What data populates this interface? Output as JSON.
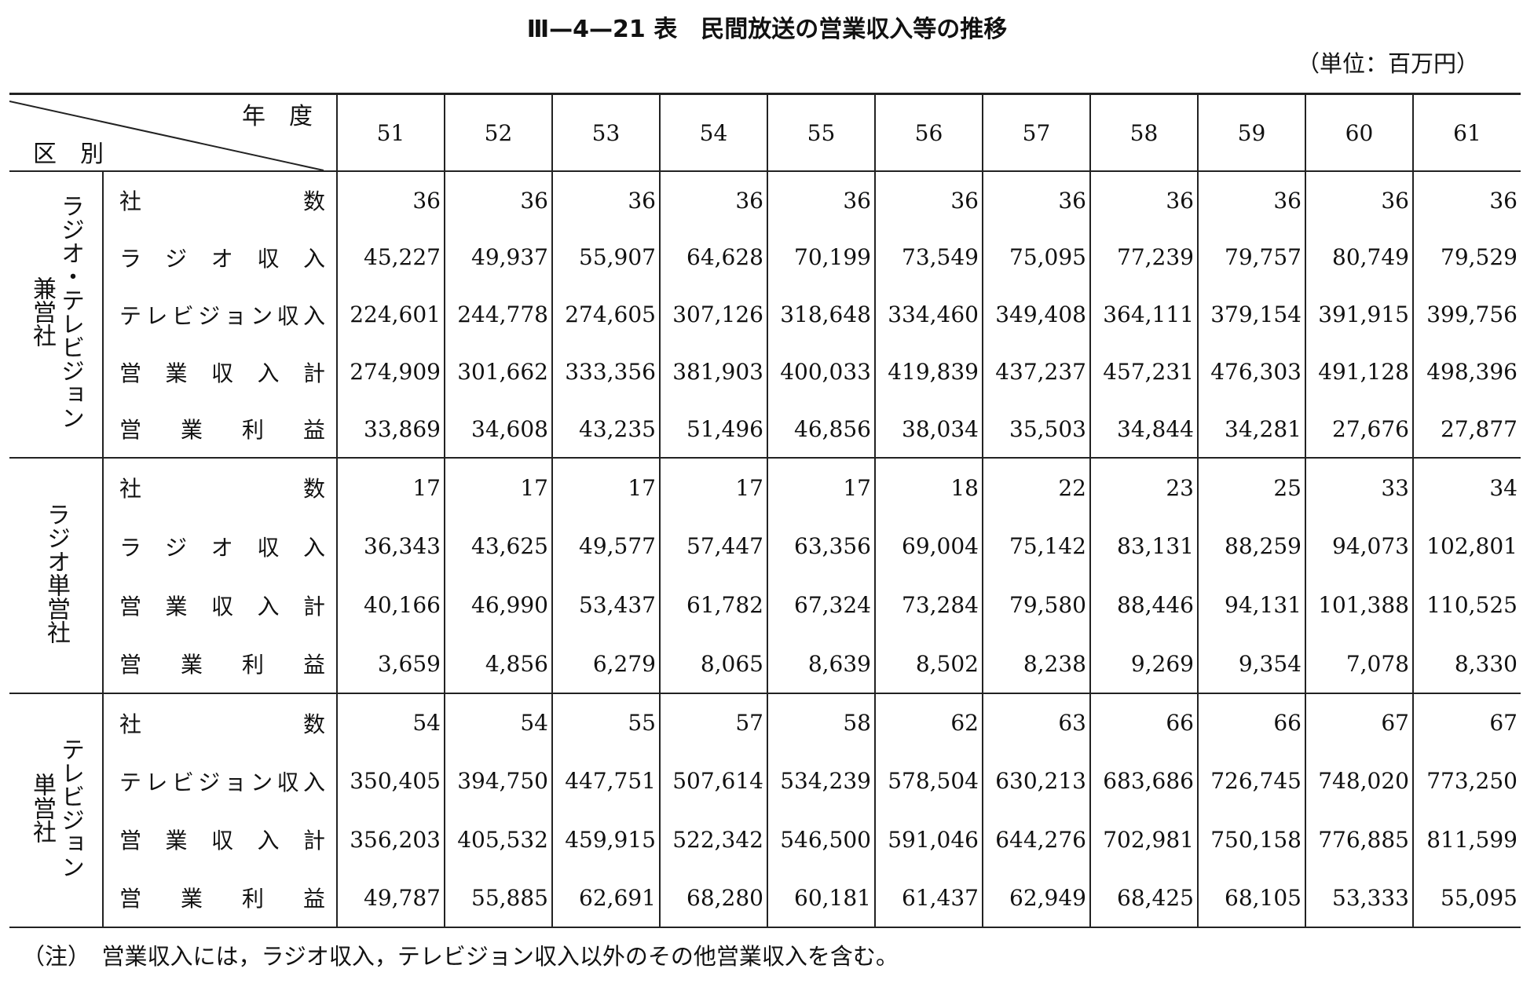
{
  "title": "Ⅲ—4—21 表　民間放送の営業収入等の推移",
  "unit": "（単位：百万円）",
  "header": {
    "year_label": "年　度",
    "category_label": "区　別",
    "years": [
      51,
      52,
      53,
      54,
      55,
      56,
      57,
      58,
      59,
      60,
      61
    ]
  },
  "groups": [
    {
      "label": [
        "ラジオ・テレビジョン",
        "兼営社"
      ],
      "rows": [
        {
          "label": "社数",
          "values": [
            "36",
            "36",
            "36",
            "36",
            "36",
            "36",
            "36",
            "36",
            "36",
            "36",
            "36"
          ]
        },
        {
          "label": "ラジオ収入",
          "values": [
            "45,227",
            "49,937",
            "55,907",
            "64,628",
            "70,199",
            "73,549",
            "75,095",
            "77,239",
            "79,757",
            "80,749",
            "79,529"
          ]
        },
        {
          "label": "テレビジョン収入",
          "values": [
            "224,601",
            "244,778",
            "274,605",
            "307,126",
            "318,648",
            "334,460",
            "349,408",
            "364,111",
            "379,154",
            "391,915",
            "399,756"
          ]
        },
        {
          "label": "営業収入計",
          "values": [
            "274,909",
            "301,662",
            "333,356",
            "381,903",
            "400,033",
            "419,839",
            "437,237",
            "457,231",
            "476,303",
            "491,128",
            "498,396"
          ]
        },
        {
          "label": "営業利益",
          "values": [
            "33,869",
            "34,608",
            "43,235",
            "51,496",
            "46,856",
            "38,034",
            "35,503",
            "34,844",
            "34,281",
            "27,676",
            "27,877"
          ]
        }
      ]
    },
    {
      "label": [
        "ラジオ単営社"
      ],
      "rows": [
        {
          "label": "社数",
          "values": [
            "17",
            "17",
            "17",
            "17",
            "17",
            "18",
            "22",
            "23",
            "25",
            "33",
            "34"
          ]
        },
        {
          "label": "ラジオ収入",
          "values": [
            "36,343",
            "43,625",
            "49,577",
            "57,447",
            "63,356",
            "69,004",
            "75,142",
            "83,131",
            "88,259",
            "94,073",
            "102,801"
          ]
        },
        {
          "label": "営業収入計",
          "values": [
            "40,166",
            "46,990",
            "53,437",
            "61,782",
            "67,324",
            "73,284",
            "79,580",
            "88,446",
            "94,131",
            "101,388",
            "110,525"
          ]
        },
        {
          "label": "営業利益",
          "values": [
            "3,659",
            "4,856",
            "6,279",
            "8,065",
            "8,639",
            "8,502",
            "8,238",
            "9,269",
            "9,354",
            "7,078",
            "8,330"
          ]
        }
      ]
    },
    {
      "label": [
        "テレビジョン",
        "単営社"
      ],
      "rows": [
        {
          "label": "社数",
          "values": [
            "54",
            "54",
            "55",
            "57",
            "58",
            "62",
            "63",
            "66",
            "66",
            "67",
            "67"
          ]
        },
        {
          "label": "テレビジョン収入",
          "values": [
            "350,405",
            "394,750",
            "447,751",
            "507,614",
            "534,239",
            "578,504",
            "630,213",
            "683,686",
            "726,745",
            "748,020",
            "773,250"
          ]
        },
        {
          "label": "営業収入計",
          "values": [
            "356,203",
            "405,532",
            "459,915",
            "522,342",
            "546,500",
            "591,046",
            "644,276",
            "702,981",
            "750,158",
            "776,885",
            "811,599"
          ]
        },
        {
          "label": "営業利益",
          "values": [
            "49,787",
            "55,885",
            "62,691",
            "68,280",
            "60,181",
            "61,437",
            "62,949",
            "68,425",
            "68,105",
            "53,333",
            "55,095"
          ]
        }
      ]
    }
  ],
  "note": "（注）　営業収入には，ラジオ収入，テレビジョン収入以外のその他営業収入を含む。"
}
